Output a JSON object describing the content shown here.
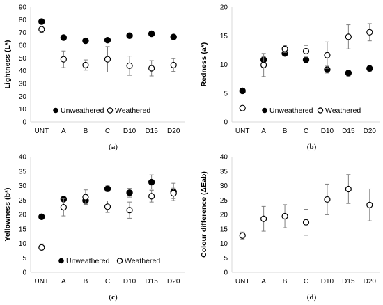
{
  "chart_data": [
    {
      "id": "a",
      "type": "scatter",
      "caption": "a",
      "ylabel": "Lightness (L*)",
      "ylim": [
        0,
        90
      ],
      "yticks": [
        0,
        10,
        20,
        30,
        40,
        50,
        60,
        70,
        80,
        90
      ],
      "categories": [
        "UNT",
        "A",
        "B",
        "C",
        "D10",
        "D15",
        "D20"
      ],
      "grid": false,
      "legend": "bottom-left",
      "series": [
        {
          "name": "Unweathered",
          "marker": "filled",
          "values": [
            78.5,
            66,
            63.5,
            64,
            67.5,
            69,
            66.5
          ],
          "errors": [
            1.2,
            1,
            0.8,
            1,
            0.8,
            0.8,
            0.8
          ]
        },
        {
          "name": "Weathered",
          "marker": "open",
          "values": [
            72.5,
            49,
            44.5,
            49,
            44,
            42,
            44.5
          ],
          "errors": [
            2.5,
            6.5,
            4,
            10,
            7.5,
            6,
            5
          ]
        }
      ]
    },
    {
      "id": "b",
      "type": "scatter",
      "caption": "b",
      "ylabel": "Redness (a*)",
      "ylim": [
        0,
        20
      ],
      "yticks": [
        0,
        5,
        10,
        15,
        20
      ],
      "categories": [
        "UNT",
        "A",
        "B",
        "C",
        "D10",
        "D15",
        "D20"
      ],
      "grid": false,
      "legend": "bottom",
      "series": [
        {
          "name": "Unweathered",
          "marker": "filled",
          "values": [
            5.4,
            10.8,
            11.9,
            10.8,
            9.1,
            8.5,
            9.3
          ],
          "errors": [
            0.4,
            0.5,
            0.3,
            0.4,
            0.6,
            0.5,
            0.5
          ]
        },
        {
          "name": "Weathered",
          "marker": "open",
          "values": [
            2.4,
            9.9,
            12.7,
            12.3,
            11.6,
            14.8,
            15.6
          ],
          "errors": [
            0.2,
            2,
            0.6,
            1,
            2.3,
            2.1,
            1.5
          ]
        }
      ]
    },
    {
      "id": "c",
      "type": "scatter",
      "caption": "c",
      "ylabel": "Yellowness (b*)",
      "ylim": [
        0,
        40
      ],
      "yticks": [
        0,
        5,
        10,
        15,
        20,
        25,
        30,
        35,
        40
      ],
      "categories": [
        "UNT",
        "A",
        "B",
        "C",
        "D10",
        "D15",
        "D20"
      ],
      "grid": false,
      "legend": "bottom",
      "series": [
        {
          "name": "Unweathered",
          "marker": "filled",
          "values": [
            19.2,
            25.3,
            24.8,
            28.9,
            27.5,
            31.2,
            27.8
          ],
          "errors": [
            0.3,
            0.5,
            1,
            1,
            1.5,
            2.5,
            3
          ]
        },
        {
          "name": "Weathered",
          "marker": "open",
          "values": [
            8.6,
            22.5,
            26,
            22.7,
            21.5,
            26.3,
            27.3
          ],
          "errors": [
            1.2,
            3,
            2.5,
            2,
            2.8,
            2,
            1.8
          ]
        }
      ]
    },
    {
      "id": "d",
      "type": "scatter",
      "caption": "d",
      "ylabel": "Colour difference (ΔEab)",
      "ylim": [
        0,
        40
      ],
      "yticks": [
        0,
        5,
        10,
        15,
        20,
        25,
        30,
        35,
        40
      ],
      "categories": [
        "UNT",
        "A",
        "B",
        "C",
        "D10",
        "D15",
        "D20"
      ],
      "grid": false,
      "legend": "none",
      "series": [
        {
          "name": "",
          "marker": "open",
          "values": [
            12.7,
            18.5,
            19.4,
            17.3,
            25.2,
            28.8,
            23.3
          ],
          "errors": [
            1.2,
            4.3,
            4,
            4.5,
            5.3,
            5,
            5.5
          ]
        }
      ]
    }
  ]
}
